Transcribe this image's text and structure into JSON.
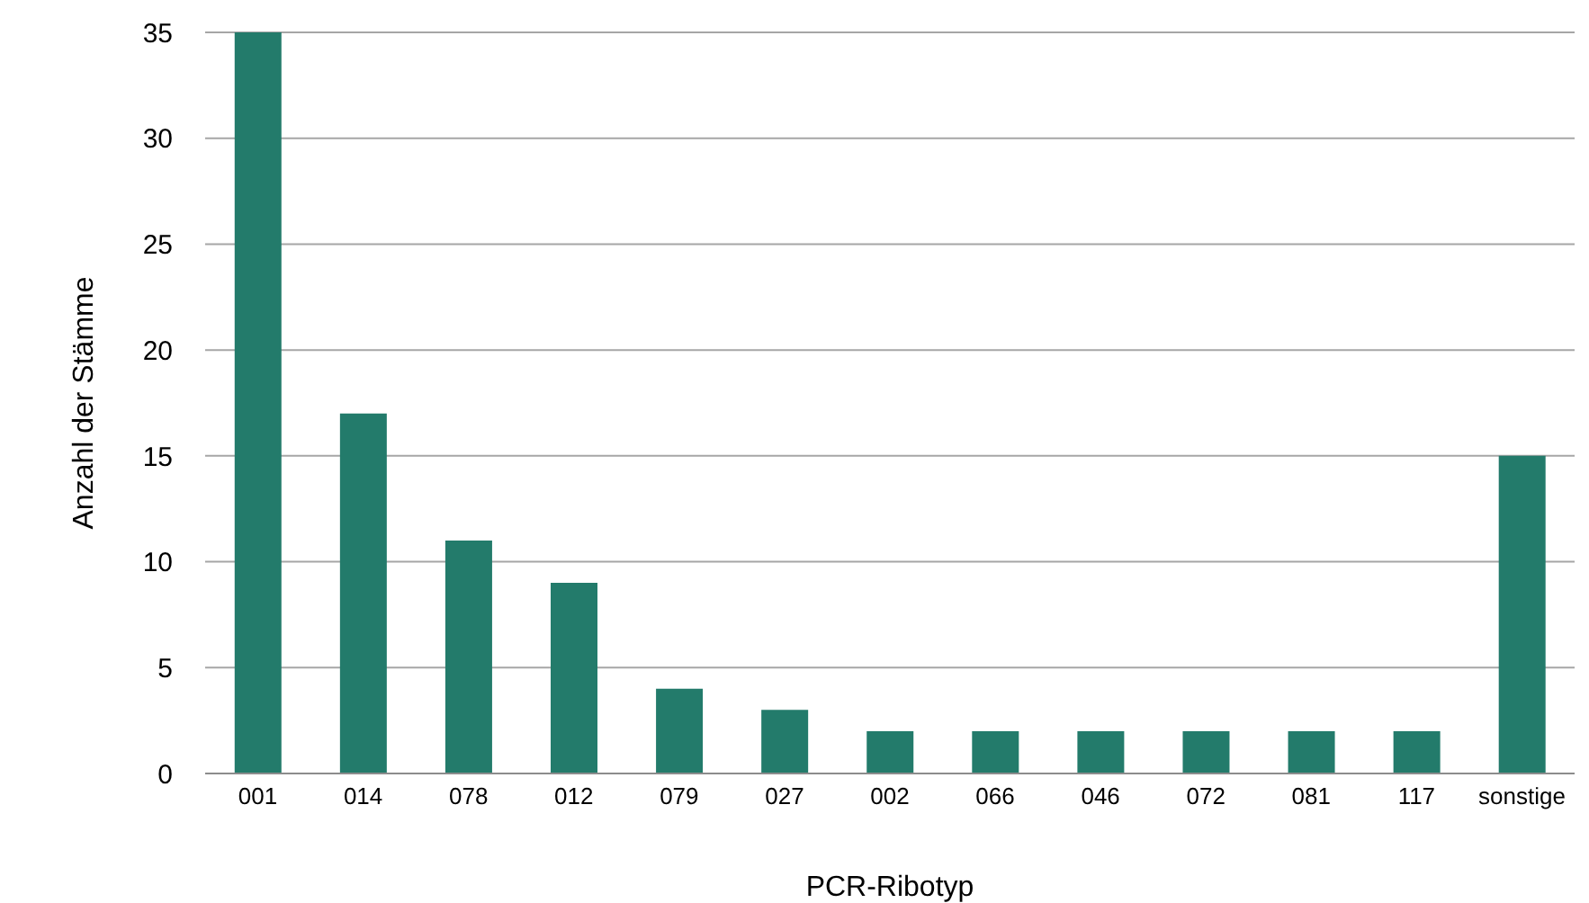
{
  "chart_data": {
    "type": "bar",
    "xlabel": "PCR-Ribotyp",
    "ylabel": "Anzahl der Stämme",
    "categories": [
      "001",
      "014",
      "078",
      "012",
      "079",
      "027",
      "002",
      "066",
      "046",
      "072",
      "081",
      "117",
      "sonstige"
    ],
    "values": [
      35,
      17,
      11,
      9,
      4,
      3,
      2,
      2,
      2,
      2,
      2,
      2,
      15
    ],
    "color": "#237b6b",
    "ylim": [
      0,
      35
    ],
    "yticks": [
      0,
      5,
      10,
      15,
      20,
      25,
      30,
      35
    ],
    "grid": "y",
    "legend": false
  }
}
